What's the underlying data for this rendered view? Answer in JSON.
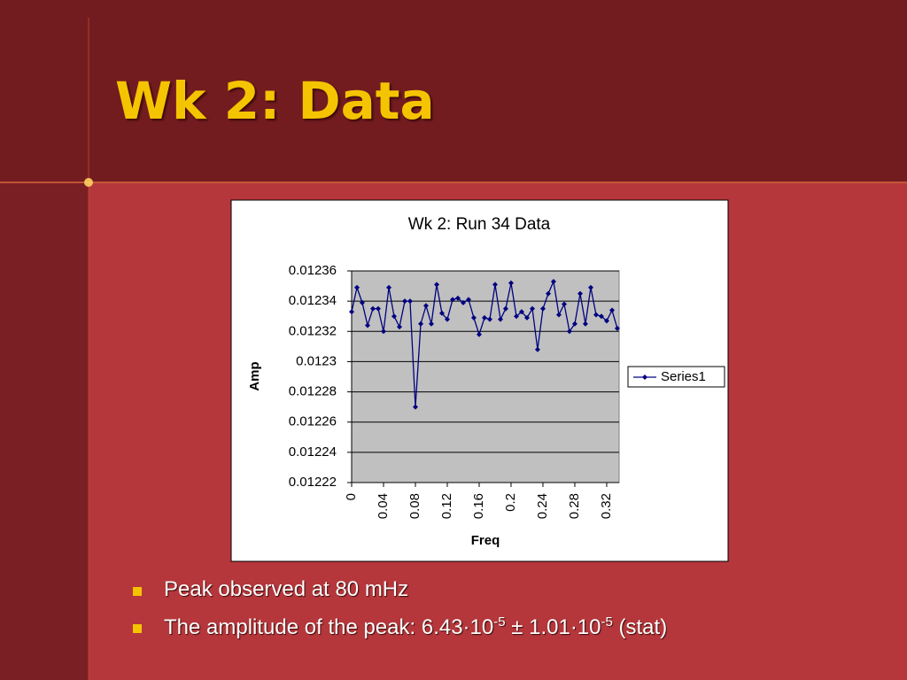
{
  "slide_title": "Wk 2: Data",
  "bullets": [
    "Peak observed at 80 mHz",
    [
      "The amplitude of the peak:  6.43·10",
      "-5",
      " ± 1.01·10",
      "-5",
      " (stat)"
    ]
  ],
  "chart_data": {
    "type": "line",
    "title": "Wk 2: Run 34 Data",
    "x_label": "Freq",
    "y_label": "Amp",
    "x": [
      0,
      0.0067,
      0.0133,
      0.02,
      0.0267,
      0.0333,
      0.04,
      0.0467,
      0.0533,
      0.06,
      0.0667,
      0.0733,
      0.08,
      0.0867,
      0.0933,
      0.1,
      0.1067,
      0.1133,
      0.12,
      0.1267,
      0.1333,
      0.14,
      0.1467,
      0.1533,
      0.16,
      0.1667,
      0.1733,
      0.18,
      0.1867,
      0.1933,
      0.2,
      0.2067,
      0.2133,
      0.22,
      0.2267,
      0.2333,
      0.24,
      0.2467,
      0.2533,
      0.26,
      0.2667,
      0.2733,
      0.28,
      0.2867,
      0.2933,
      0.3,
      0.3067,
      0.3133,
      0.32,
      0.3267,
      0.3333
    ],
    "series": [
      {
        "name": "Series1",
        "color": "#000080",
        "values": [
          0.012333,
          0.012349,
          0.012339,
          0.012324,
          0.012335,
          0.012335,
          0.01232,
          0.012349,
          0.01233,
          0.012323,
          0.01234,
          0.01234,
          0.01227,
          0.012325,
          0.012337,
          0.012325,
          0.012351,
          0.012332,
          0.012328,
          0.012341,
          0.012342,
          0.012339,
          0.012341,
          0.012329,
          0.012318,
          0.012329,
          0.012328,
          0.012351,
          0.012328,
          0.012335,
          0.012352,
          0.01233,
          0.012333,
          0.012329,
          0.012335,
          0.012308,
          0.012335,
          0.012345,
          0.012353,
          0.012331,
          0.012338,
          0.01232,
          0.012325,
          0.012345,
          0.012325,
          0.012349,
          0.012331,
          0.01233,
          0.012327,
          0.012334,
          0.012322
        ]
      }
    ],
    "xlim": [
      0,
      0.3356
    ],
    "xticks": [
      0,
      0.04,
      0.08,
      0.12,
      0.16,
      0.2,
      0.24,
      0.28,
      0.32
    ],
    "ylim": [
      0.01222,
      0.01236
    ],
    "yticks": [
      0.01222,
      0.01224,
      0.01226,
      0.01228,
      0.0123,
      0.01232,
      0.01234,
      0.01236
    ],
    "grid": true,
    "legend": "right"
  }
}
